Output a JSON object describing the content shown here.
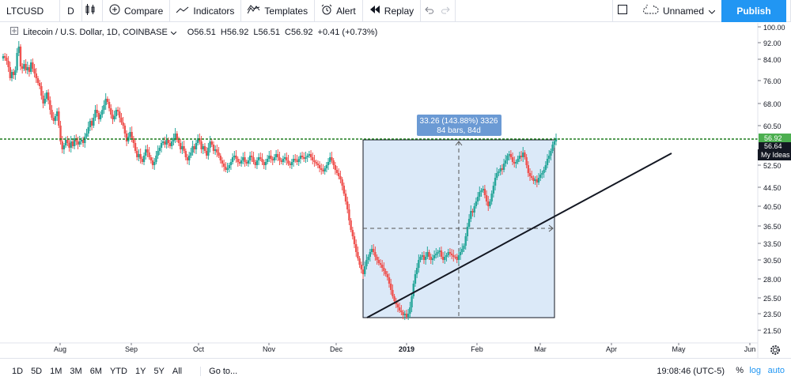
{
  "toolbar": {
    "symbol": "LTCUSD",
    "interval": "D",
    "compare_label": "Compare",
    "indicators_label": "Indicators",
    "templates_label": "Templates",
    "alert_label": "Alert",
    "replay_label": "Replay",
    "layout_name": "Unnamed",
    "publish_label": "Publish"
  },
  "legend": {
    "title": "Litecoin / U.S. Dollar, 1D, COINBASE",
    "o_label": "O",
    "o": "56.51",
    "h_label": "H",
    "h": "56.92",
    "l_label": "L",
    "l": "56.51",
    "c_label": "C",
    "c": "56.92",
    "change": "+0.41 (+0.73%)"
  },
  "price_axis": {
    "ticks": [
      "100.00",
      "92.00",
      "84.00",
      "76.00",
      "68.00",
      "60.50",
      "56.92",
      "56.64",
      "52.50",
      "44.50",
      "40.50",
      "36.50",
      "33.50",
      "30.50",
      "28.00",
      "25.50",
      "23.50",
      "21.50"
    ],
    "last_price": "56.92",
    "prev_label": "56.64",
    "my_ideas": "My Ideas"
  },
  "time_axis": {
    "labels": [
      "Aug",
      "Sep",
      "Oct",
      "Nov",
      "Dec",
      "2019",
      "Feb",
      "Mar",
      "Apr",
      "May",
      "Jun"
    ]
  },
  "measure": {
    "line1": "33.26 (143.88%) 3326",
    "line2": "84 bars, 84d"
  },
  "bottom": {
    "ranges": [
      "1D",
      "5D",
      "1M",
      "3M",
      "6M",
      "YTD",
      "1Y",
      "5Y",
      "All"
    ],
    "goto": "Go to...",
    "clock": "19:08:46 (UTC-5)",
    "percent": "%",
    "log": "log",
    "auto": "auto"
  },
  "colors": {
    "up": "#26a69a",
    "down": "#ef5350",
    "accent": "#2196f3",
    "price_line": "#1b7a1b"
  }
}
